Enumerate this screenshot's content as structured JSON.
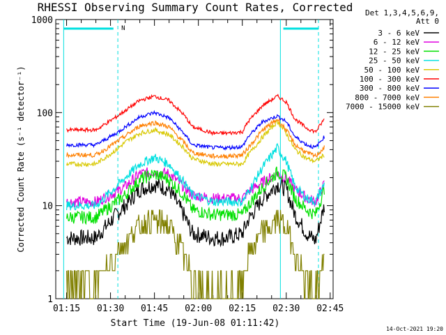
{
  "chart_data": {
    "type": "line",
    "title": "RHESSI Observing Summary Count Rates, Corrected",
    "xlabel": "Start Time (19-Jun-08 01:11:42)",
    "ylabel": "Corrected Count Rate (s⁻¹ detector⁻¹)",
    "y_scale": "log",
    "ylim": [
      1,
      1000
    ],
    "x_ticks": [
      "01:15",
      "01:30",
      "01:45",
      "02:00",
      "02:15",
      "02:30",
      "02:45"
    ],
    "y_ticks": [
      "1",
      "10",
      "100",
      "1000"
    ],
    "legend_header": [
      "Det 1,3,4,5,6,9,",
      "Att 0"
    ],
    "legend_position": "right",
    "annotation": "N",
    "timestamp": "14-Oct-2021 19:20",
    "x_minutes": [
      0,
      10,
      17,
      20,
      25,
      30,
      35,
      40,
      43,
      50,
      55,
      60,
      62,
      67,
      72,
      75,
      78,
      82,
      85,
      88
    ],
    "series": [
      {
        "name": "3 - 6 keV",
        "color": "#000000",
        "values": [
          4.5,
          4.5,
          8,
          10,
          15,
          17,
          15,
          8,
          5,
          4.5,
          4.5,
          5,
          7,
          12,
          17,
          15,
          8,
          5,
          4.2,
          10
        ]
      },
      {
        "name": "6 - 12 keV",
        "color": "#e000e0",
        "values": [
          11,
          11,
          14,
          16,
          22,
          23,
          22,
          16,
          13,
          12,
          12,
          12,
          14,
          18,
          22,
          20,
          15,
          12,
          11,
          17
        ]
      },
      {
        "name": "12 - 25 keV",
        "color": "#00e000",
        "values": [
          7.5,
          7.5,
          11,
          13,
          19,
          22,
          19,
          13,
          9,
          8,
          8,
          8,
          10,
          16,
          23,
          20,
          12,
          9,
          8,
          15
        ]
      },
      {
        "name": "25 - 50 keV",
        "color": "#00e0e0",
        "values": [
          10,
          10,
          16,
          20,
          28,
          33,
          28,
          18,
          13,
          11,
          11,
          11,
          14,
          26,
          42,
          30,
          16,
          12,
          11,
          17
        ]
      },
      {
        "name": "50 - 100 keV",
        "color": "#d8c800",
        "values": [
          28,
          28,
          40,
          48,
          60,
          65,
          58,
          42,
          32,
          28,
          28,
          28,
          35,
          55,
          80,
          60,
          40,
          32,
          30,
          35
        ]
      },
      {
        "name": "100 - 300 keV",
        "color": "#ff0000",
        "values": [
          65,
          65,
          90,
          105,
          135,
          150,
          135,
          95,
          70,
          60,
          60,
          62,
          80,
          120,
          150,
          130,
          85,
          68,
          62,
          85
        ]
      },
      {
        "name": "300 - 800 keV",
        "color": "#0000ff",
        "values": [
          45,
          45,
          60,
          70,
          90,
          100,
          88,
          60,
          45,
          42,
          42,
          43,
          55,
          80,
          92,
          80,
          55,
          45,
          42,
          55
        ]
      },
      {
        "name": "800 - 7000 keV",
        "color": "#ff8000",
        "values": [
          35,
          35,
          48,
          56,
          72,
          78,
          70,
          48,
          37,
          34,
          34,
          35,
          42,
          65,
          85,
          65,
          45,
          37,
          34,
          42
        ]
      },
      {
        "name": "7000 - 15000 keV",
        "color": "#808000",
        "values": [
          1.5,
          1.5,
          3,
          4,
          6,
          7,
          6,
          3,
          1.5,
          1.2,
          1.2,
          1.5,
          3,
          5,
          7,
          6,
          3,
          1.5,
          1.2,
          2.5
        ]
      }
    ],
    "markers": {
      "dashed_x_minutes": [
        17.5,
        86
      ],
      "solid_x_minutes": [
        -1,
        73
      ],
      "bars": [
        {
          "from": -1,
          "to": 16
        },
        {
          "from": 74,
          "to": 86
        }
      ]
    },
    "grid": false
  }
}
